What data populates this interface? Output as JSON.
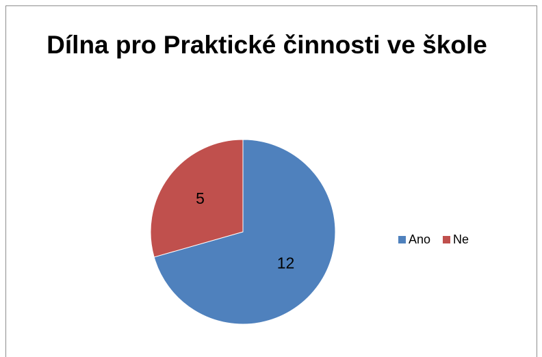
{
  "chart_data": {
    "type": "pie",
    "title": "Dílna pro Praktické činnosti ve škole",
    "categories": [
      "Ano",
      "Ne"
    ],
    "values": [
      12,
      5
    ],
    "colors": [
      "#4F81BD",
      "#C0504D"
    ],
    "legend_position": "right"
  }
}
